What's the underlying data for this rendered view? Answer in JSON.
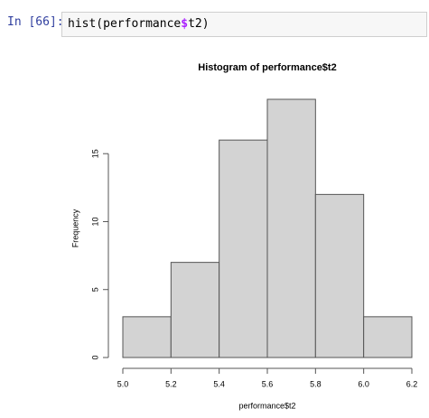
{
  "cell": {
    "prompt": "In [66]:",
    "code": [
      "hist(performance",
      "$",
      "t2)"
    ]
  },
  "chart_data": {
    "type": "histogram",
    "title": "Histogram of performance$t2",
    "x_label": "performance$t2",
    "y_label": "Frequency",
    "bins": [
      5.0,
      5.2,
      5.4,
      5.6,
      5.8,
      6.0,
      6.2
    ],
    "values": [
      3,
      7,
      16,
      19,
      12,
      3
    ],
    "color": "#d3d3d3",
    "xlim": [
      5.0,
      6.2
    ],
    "xticks": [
      {
        "value": 5.0,
        "label": "5.0"
      },
      5.2,
      5.4,
      5.6,
      5.8,
      {
        "value": 6.0,
        "label": "6.0"
      },
      6.2
    ],
    "ylim": [
      0,
      19
    ],
    "yticks": [
      0,
      5,
      10,
      15
    ]
  }
}
